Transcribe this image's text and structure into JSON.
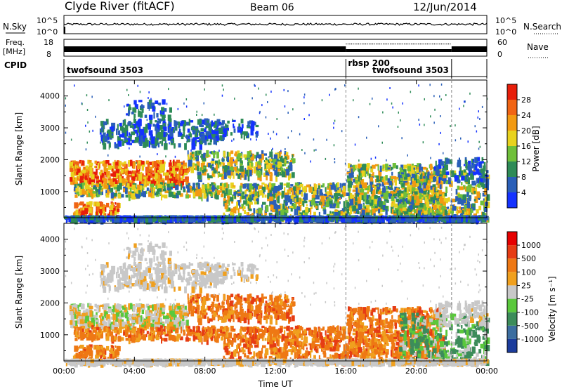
{
  "header": {
    "title": "Clyde River (fitACF)",
    "beam": "Beam 06",
    "date": "12/Jun/2014"
  },
  "status_panels": {
    "nsky_label": "N.Sky",
    "nsearch_label": "N.Search",
    "left_ticks_top": [
      "10^5",
      "10^0"
    ],
    "right_ticks_top": [
      "10^5",
      "10^0"
    ],
    "freq_label": "Freq.",
    "freq_unit": "[MHz]",
    "freq_ticks": [
      "18",
      "8"
    ],
    "nave_label": "Nave",
    "nave_ticks": [
      "60",
      "0"
    ],
    "cpid_label": "CPID",
    "cpid_segments": [
      {
        "name": "twofsound 3503",
        "start_hour": 0,
        "end_hour": 16
      },
      {
        "name": "rbsp 200",
        "start_hour": 16,
        "end_hour": 22
      },
      {
        "name": "twofsound 3503",
        "start_hour": 22,
        "end_hour": 24
      }
    ]
  },
  "chart_data": [
    {
      "type": "heatmap",
      "panel": "power",
      "ylabel": "Slant Range [km]",
      "xlim_hours": [
        0,
        24
      ],
      "ylim": [
        180,
        4500
      ],
      "yticks": [
        1000,
        2000,
        3000,
        4000
      ],
      "colorbar": {
        "label": "Power [dB]",
        "ticks": [
          "4",
          "8",
          "12",
          "16",
          "20",
          "24",
          "28"
        ],
        "colors": [
          "#1432ff",
          "#2a5fb8",
          "#2e8b57",
          "#6fbf3a",
          "#e8d21e",
          "#f29a12",
          "#f06414",
          "#e81e0a"
        ]
      },
      "echo_bands": [
        {
          "x": [
            0.5,
            7.0
          ],
          "y": [
            1300,
            2000
          ],
          "level": "strong"
        },
        {
          "x": [
            0.5,
            3.0
          ],
          "y": [
            300,
            700
          ],
          "level": "strong"
        },
        {
          "x": [
            2.0,
            9.0
          ],
          "y": [
            2600,
            3200
          ],
          "level": "weak"
        },
        {
          "x": [
            7.0,
            13.0
          ],
          "y": [
            1400,
            2300
          ],
          "level": "medium"
        },
        {
          "x": [
            16.0,
            24.0
          ],
          "y": [
            200,
            1900
          ],
          "level": "medium"
        }
      ]
    },
    {
      "type": "heatmap",
      "panel": "velocity",
      "xlabel": "Time UT",
      "ylabel": "Slant Range [km]",
      "xlim_hours": [
        0,
        24
      ],
      "ylim": [
        180,
        4500
      ],
      "xticks": [
        "00:00",
        "04:00",
        "08:00",
        "12:00",
        "16:00",
        "20:00",
        "00:00"
      ],
      "yticks": [
        1000,
        2000,
        3000,
        4000
      ],
      "colorbar": {
        "label": "Velocity [m s⁻¹]",
        "ticks": [
          "1000",
          "500",
          "100",
          "25",
          "-25",
          "-100",
          "-500",
          "-1000"
        ],
        "colors": [
          "#1c3c9c",
          "#3c6ea0",
          "#3c8c5a",
          "#5ac83c",
          "#c8c8c8",
          "#f0a01e",
          "#ee7814",
          "#e63c14",
          "#e60000"
        ]
      }
    }
  ]
}
